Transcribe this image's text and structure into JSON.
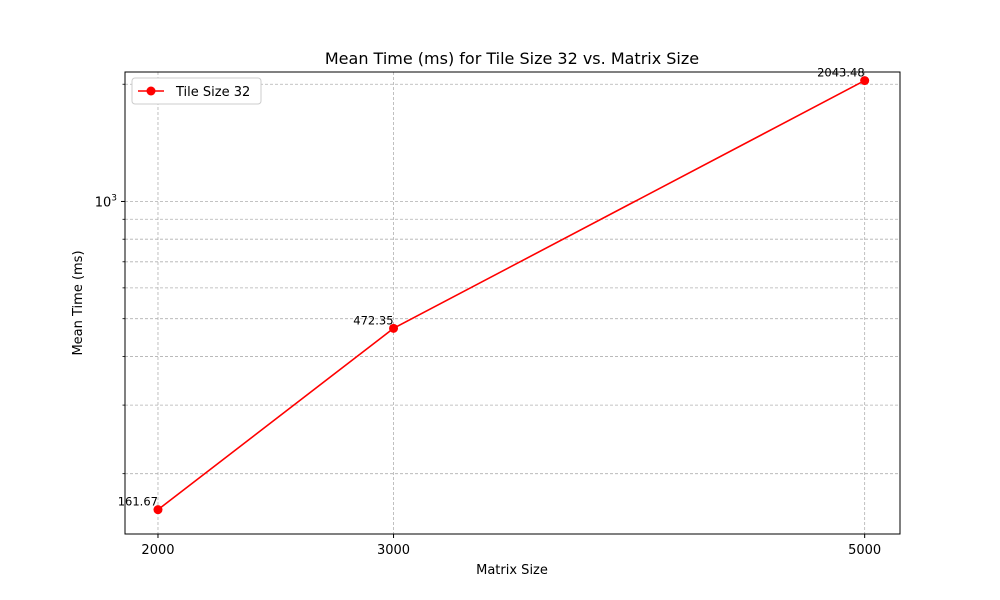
{
  "chart_data": {
    "type": "line",
    "title": "Mean Time (ms) for Tile Size 32 vs. Matrix Size",
    "xlabel": "Matrix Size",
    "ylabel": "Mean Time (ms)",
    "x_scale": "linear",
    "y_scale": "log",
    "xlim": [
      1860,
      5150
    ],
    "ylim": [
      140,
      2150
    ],
    "x_ticks": [
      2000,
      3000,
      5000
    ],
    "x_tick_labels": [
      "2000",
      "3000",
      "5000"
    ],
    "y_major_tick": {
      "value": 1000,
      "base": "10",
      "exponent": "3"
    },
    "y_minor_ticks": [
      200,
      300,
      400,
      500,
      600,
      700,
      800,
      900,
      2000
    ],
    "grid": true,
    "legend_position": "top-left",
    "series": [
      {
        "name": "Tile Size 32",
        "color": "#ff0000",
        "marker": "circle",
        "x": [
          2000,
          3000,
          5000
        ],
        "y": [
          161.67,
          472.35,
          2043.48
        ],
        "labels": [
          "161.67",
          "472.35",
          "2043.48"
        ]
      }
    ]
  }
}
